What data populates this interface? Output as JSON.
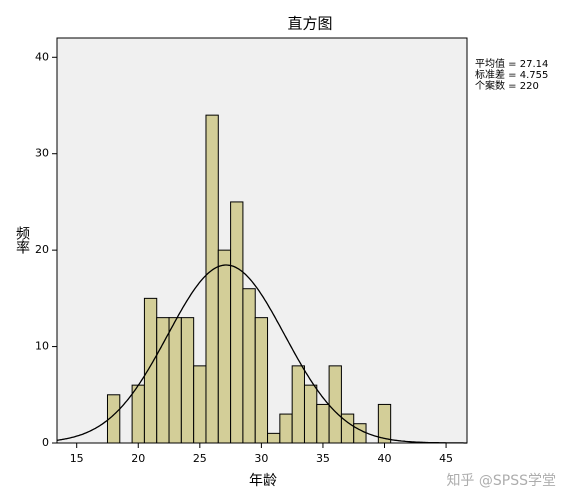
{
  "chart_data": {
    "type": "histogram",
    "title": "直方图",
    "x_label": "年龄",
    "y_label": "频率",
    "bins": [
      17.5,
      18.5,
      19.5,
      20.5,
      21.5,
      22.5,
      23.5,
      24.5,
      25.5,
      26.5,
      27.5,
      28.5,
      29.5,
      30.5,
      31.5,
      32.5,
      33.5,
      34.5,
      35.5,
      36.5,
      37.5,
      38.5,
      39.5,
      40.5
    ],
    "values": [
      5,
      0,
      6,
      15,
      13,
      13,
      13,
      8,
      34,
      20,
      25,
      16,
      13,
      1,
      3,
      8,
      6,
      4,
      8,
      3,
      2,
      0,
      4
    ],
    "color": "#d3ce98",
    "xlim": [
      13.4,
      46.7
    ],
    "xticks": [
      15,
      20,
      25,
      30,
      35,
      40,
      45
    ],
    "ylim": [
      0,
      42
    ],
    "yticks": [
      0,
      10,
      20,
      30,
      40
    ],
    "stats": {
      "mean": {
        "value": 27.14,
        "label": "平均值 = 27.14"
      },
      "sd": {
        "value": 4.755,
        "label": "标准差 = 4.755"
      },
      "n": {
        "value": 220,
        "label": "个案数 = 220"
      }
    },
    "normal_curve": true,
    "watermark": "知乎 @SPSS学堂"
  }
}
